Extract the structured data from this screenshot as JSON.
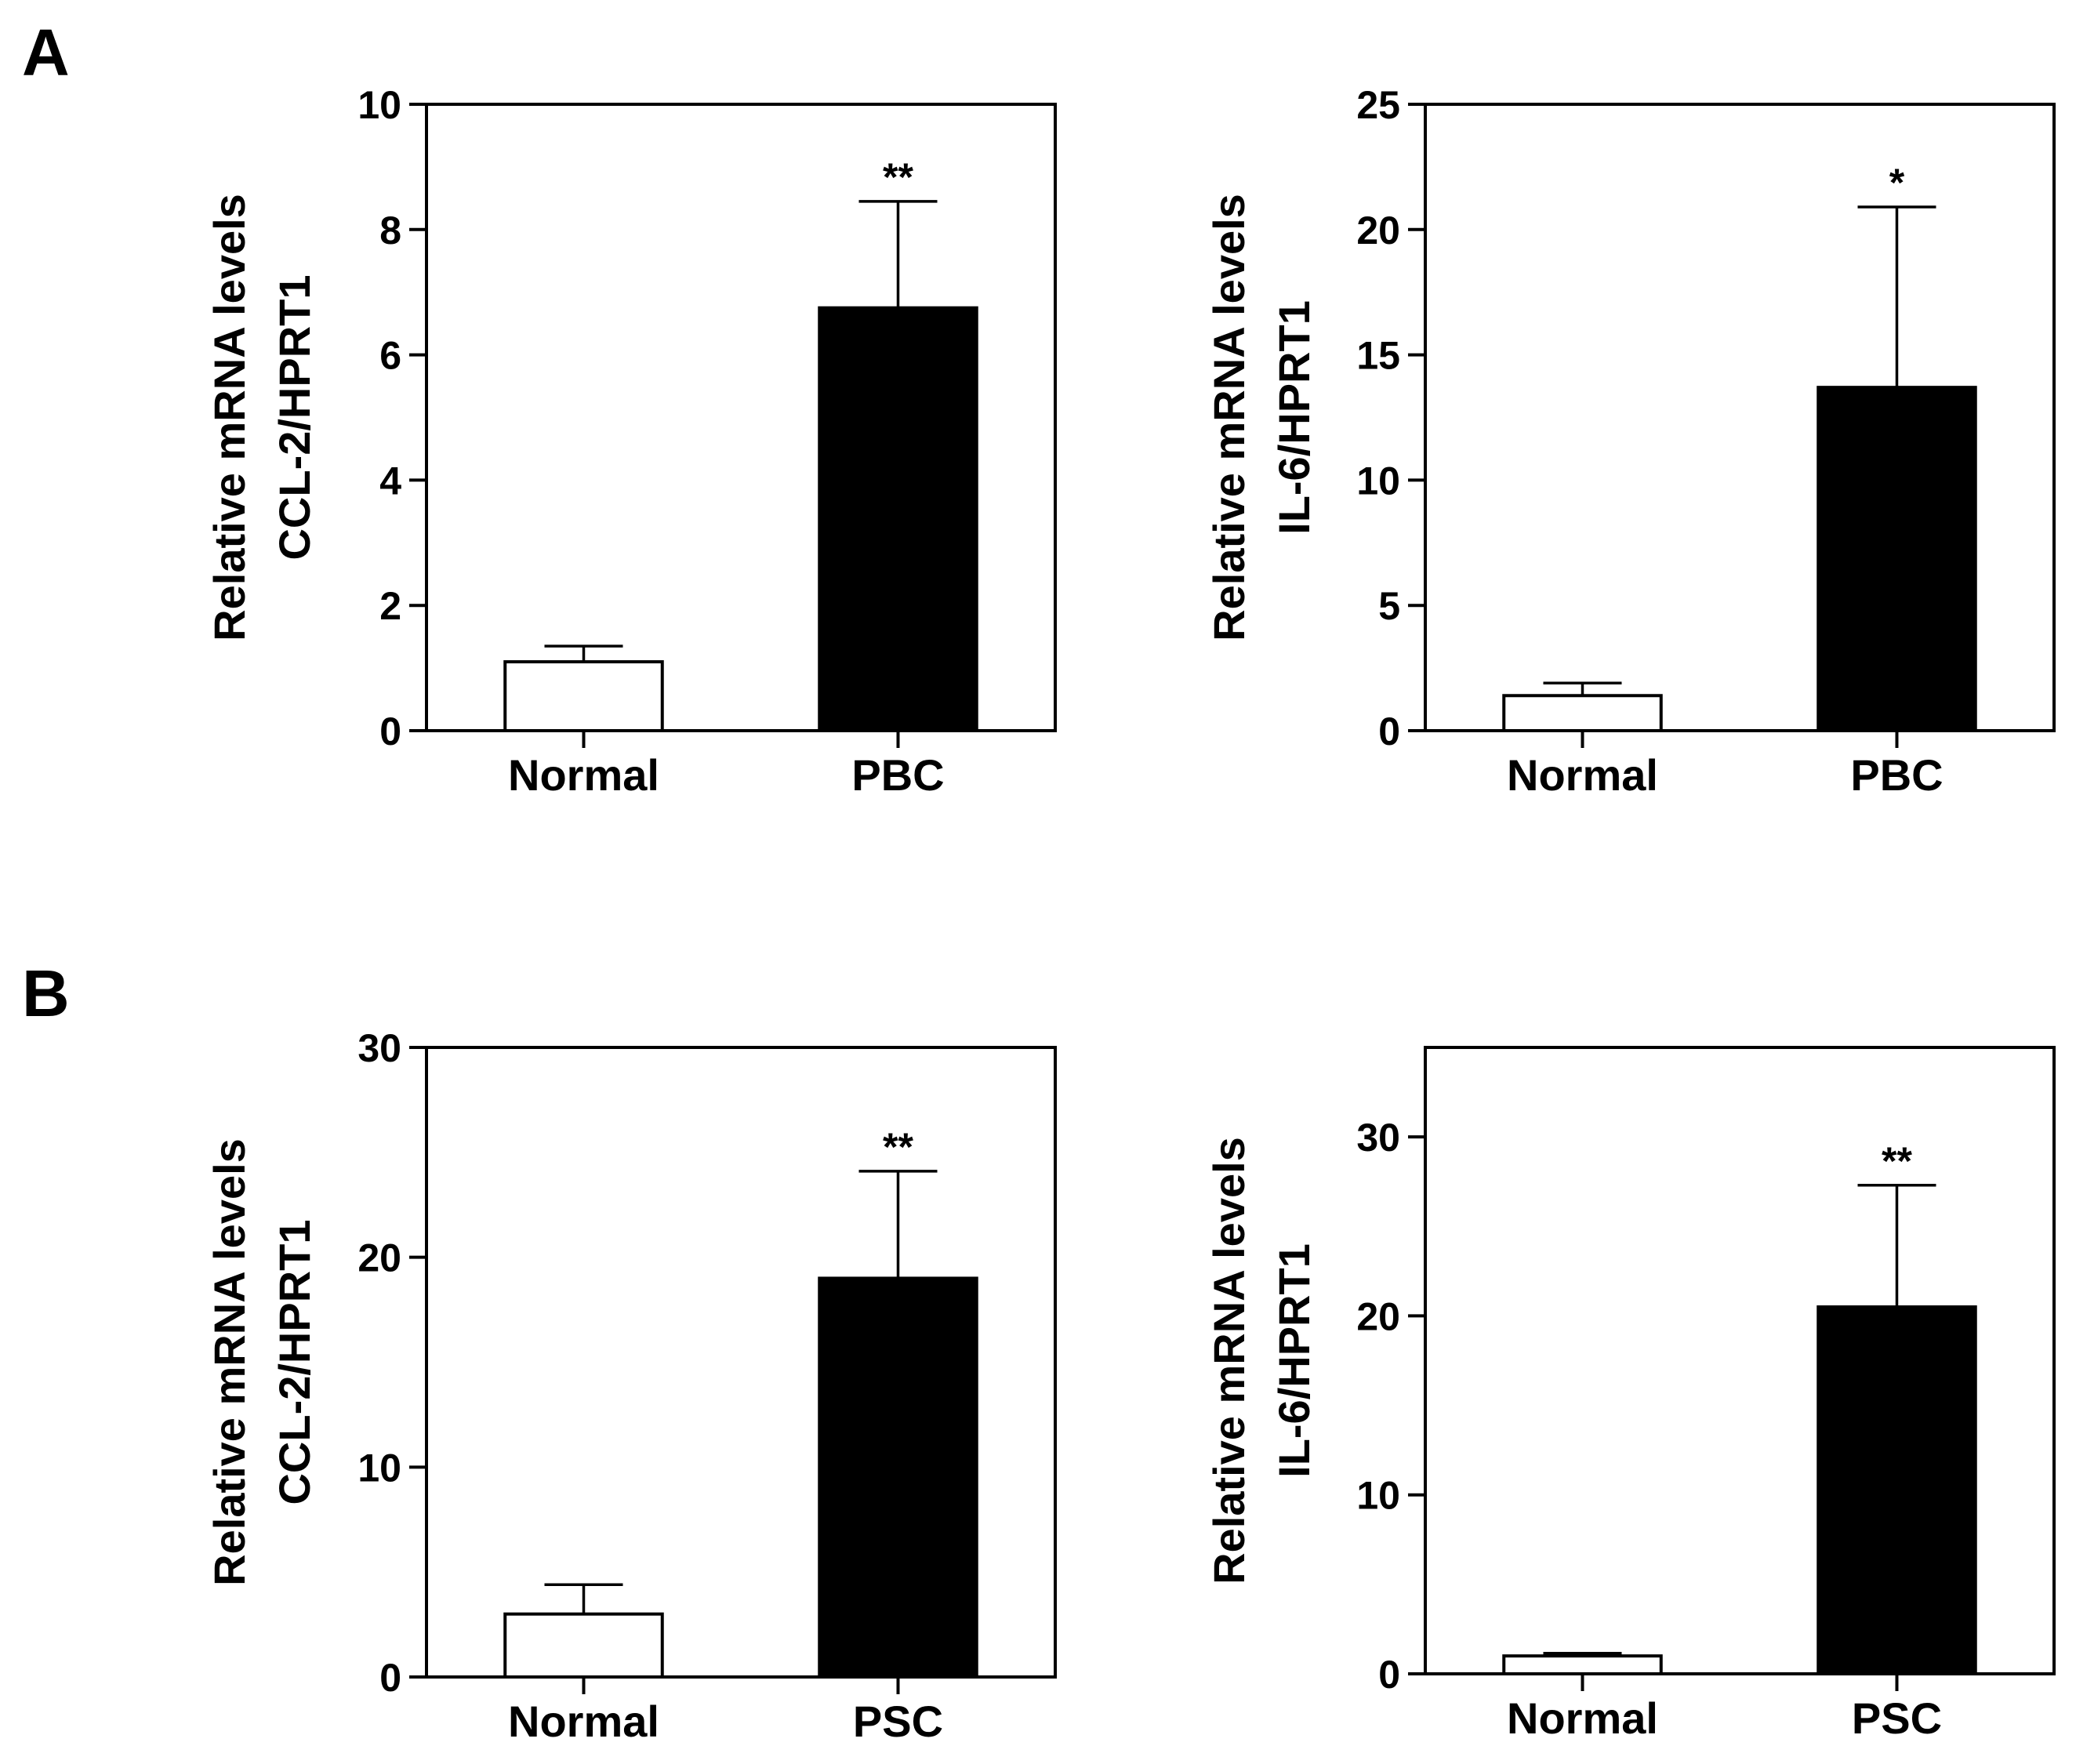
{
  "panels": [
    {
      "label": "A"
    },
    {
      "label": "B"
    }
  ],
  "chart_data": [
    {
      "type": "bar",
      "panel": "A",
      "categories": [
        "Normal",
        "PBC"
      ],
      "values": [
        1.1,
        6.75
      ],
      "errors": [
        0.25,
        1.7
      ],
      "significance": [
        "",
        "**"
      ],
      "ylabel_lines": [
        "Relative mRNA levels",
        "CCL-2/HPRT1"
      ],
      "ylim": [
        0,
        10
      ],
      "yticks": [
        0,
        2,
        4,
        6,
        8,
        10
      ],
      "bar_colors": [
        "#ffffff",
        "#000000"
      ]
    },
    {
      "type": "bar",
      "panel": "A",
      "categories": [
        "Normal",
        "PBC"
      ],
      "values": [
        1.4,
        13.7
      ],
      "errors": [
        0.5,
        7.2
      ],
      "significance": [
        "",
        "*"
      ],
      "ylabel_lines": [
        "Relative mRNA levels",
        "IL-6/HPRT1"
      ],
      "ylim": [
        0,
        25
      ],
      "yticks": [
        0,
        5,
        10,
        15,
        20,
        25
      ],
      "bar_colors": [
        "#ffffff",
        "#000000"
      ]
    },
    {
      "type": "bar",
      "panel": "B",
      "categories": [
        "Normal",
        "PSC"
      ],
      "values": [
        3.0,
        19.0
      ],
      "errors": [
        1.4,
        5.1
      ],
      "significance": [
        "",
        "**"
      ],
      "ylabel_lines": [
        "Relative mRNA levels",
        "CCL-2/HPRT1"
      ],
      "ylim": [
        0,
        30
      ],
      "yticks": [
        0,
        10,
        20,
        30
      ],
      "bar_colors": [
        "#ffffff",
        "#000000"
      ]
    },
    {
      "type": "bar",
      "panel": "B",
      "categories": [
        "Normal",
        "PSC"
      ],
      "values": [
        1.0,
        20.5
      ],
      "errors": [
        0.15,
        6.8
      ],
      "significance": [
        "",
        "**"
      ],
      "ylabel_lines": [
        "Relative mRNA levels",
        "IL-6/HPRT1"
      ],
      "ylim": [
        0,
        35
      ],
      "yticks": [
        0,
        10,
        20,
        30
      ],
      "bar_colors": [
        "#ffffff",
        "#000000"
      ]
    }
  ]
}
